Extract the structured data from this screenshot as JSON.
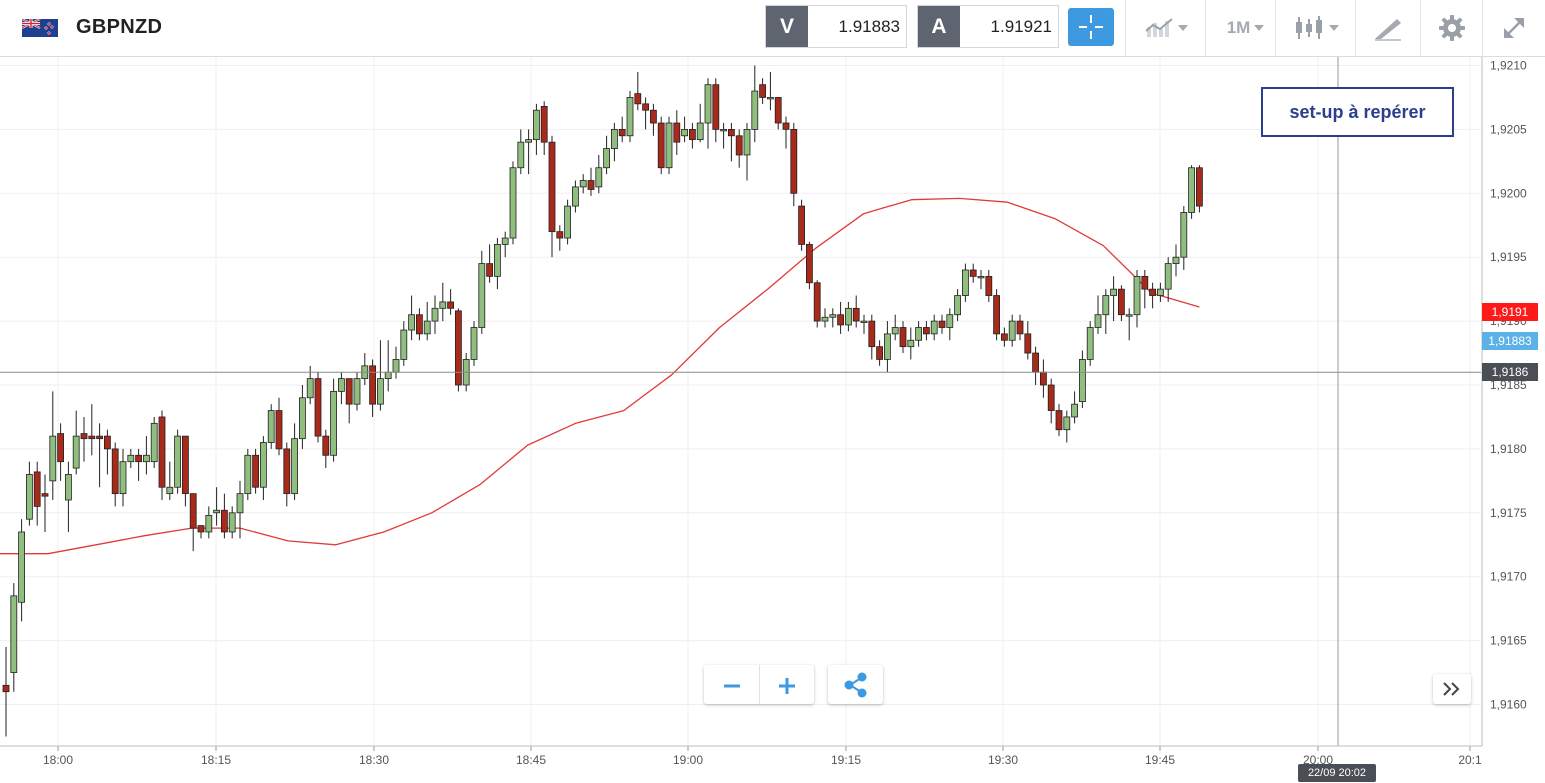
{
  "toolbar": {
    "symbol": "GBPNZD",
    "sell_label": "V",
    "sell_price": "1.91883",
    "buy_label": "A",
    "buy_price": "1.91921",
    "timeframe": "1M"
  },
  "annotation": "set-up à repérer",
  "price_tags": {
    "ma_value": "1,9191",
    "sell_value": "1,91883",
    "crosshair_value": "1,9186"
  },
  "crosshair_time": "22/09 20:02",
  "colors": {
    "bull": "#8fbe7e",
    "bear": "#a82a1a",
    "ma_line": "#e03a3a",
    "accent": "#3d9ae0",
    "annotation_border": "#2d3f8c"
  },
  "icons": {
    "flag": "uk-nz-flag-icon",
    "crosshair": "crosshair-icon",
    "chart_type": "chart-type-icon",
    "candles": "candlestick-icon",
    "draw": "drawing-tool-icon",
    "settings": "gear-icon",
    "fullscreen": "fullscreen-icon",
    "zoom_out": "minus-icon",
    "zoom_in": "plus-icon",
    "share": "share-icon",
    "scroll_forward": "double-chevron-right-icon"
  },
  "chart_data": {
    "type": "candlestick",
    "ylim": [
      1.9157,
      1.9211
    ],
    "y_ticks": [
      "1,9160",
      "1,9165",
      "1,9170",
      "1,9175",
      "1,9180",
      "1,9185",
      "1,9190",
      "1,9195",
      "1,9200",
      "1,9205",
      "1,9210"
    ],
    "x_ticks": [
      "18:00",
      "18:15",
      "18:30",
      "18:45",
      "19:00",
      "19:15",
      "19:30",
      "19:45",
      "20:00",
      "20:1"
    ],
    "interval": "1 minute",
    "grid": true,
    "crosshair_price": 1.9186,
    "moving_average": [
      1.91718,
      1.91718,
      1.91725,
      1.91732,
      1.91738,
      1.91738,
      1.91728,
      1.91725,
      1.91735,
      1.9175,
      1.91772,
      1.91803,
      1.9182,
      1.9183,
      1.91858,
      1.91895,
      1.91925,
      1.91957,
      1.91984,
      1.91995,
      1.91996,
      1.91993,
      1.9198,
      1.91959,
      1.91922,
      1.91911
    ],
    "candles": [
      [
        1.91615,
        1.9161,
        1.91645,
        1.91575
      ],
      [
        1.91625,
        1.91685,
        1.91695,
        1.9161
      ],
      [
        1.9168,
        1.91735,
        1.91745,
        1.91665
      ],
      [
        1.91745,
        1.9178,
        1.9179,
        1.9174
      ],
      [
        1.91782,
        1.91755,
        1.9179,
        1.9174
      ],
      [
        1.91765,
        1.91763,
        1.9178,
        1.91735
      ],
      [
        1.91775,
        1.9181,
        1.91845,
        1.9176
      ],
      [
        1.91812,
        1.9179,
        1.9182,
        1.91775
      ],
      [
        1.9176,
        1.9178,
        1.9179,
        1.91735
      ],
      [
        1.91785,
        1.9181,
        1.9183,
        1.9178
      ],
      [
        1.91812,
        1.91808,
        1.91825,
        1.9179
      ],
      [
        1.9181,
        1.91808,
        1.91835,
        1.91795
      ],
      [
        1.9181,
        1.91808,
        1.9182,
        1.9177
      ],
      [
        1.9181,
        1.918,
        1.91815,
        1.9178
      ],
      [
        1.918,
        1.91765,
        1.91805,
        1.91755
      ],
      [
        1.91765,
        1.9179,
        1.918,
        1.91755
      ],
      [
        1.9179,
        1.91795,
        1.918,
        1.91785
      ],
      [
        1.91795,
        1.9179,
        1.918,
        1.91775
      ],
      [
        1.9179,
        1.91795,
        1.9181,
        1.9178
      ],
      [
        1.9179,
        1.9182,
        1.91825,
        1.91785
      ],
      [
        1.91825,
        1.9177,
        1.9183,
        1.9176
      ],
      [
        1.91765,
        1.9177,
        1.9179,
        1.9176
      ],
      [
        1.9177,
        1.9181,
        1.91815,
        1.91765
      ],
      [
        1.9181,
        1.91765,
        1.9181,
        1.91755
      ],
      [
        1.91765,
        1.91738,
        1.91765,
        1.9172
      ],
      [
        1.9174,
        1.91735,
        1.9174,
        1.9173
      ],
      [
        1.91735,
        1.91748,
        1.91755,
        1.9173
      ],
      [
        1.9175,
        1.91752,
        1.9177,
        1.9174
      ],
      [
        1.91752,
        1.91735,
        1.91765,
        1.9173
      ],
      [
        1.91735,
        1.9175,
        1.91755,
        1.9173
      ],
      [
        1.9175,
        1.91765,
        1.91775,
        1.9173
      ],
      [
        1.91765,
        1.91795,
        1.918,
        1.9176
      ],
      [
        1.91795,
        1.9177,
        1.918,
        1.91765
      ],
      [
        1.9177,
        1.91805,
        1.9181,
        1.9176
      ],
      [
        1.91805,
        1.9183,
        1.91835,
        1.918
      ],
      [
        1.9183,
        1.918,
        1.9184,
        1.91795
      ],
      [
        1.918,
        1.91765,
        1.91805,
        1.91755
      ],
      [
        1.91765,
        1.91808,
        1.9182,
        1.9176
      ],
      [
        1.91808,
        1.9184,
        1.9185,
        1.918
      ],
      [
        1.9184,
        1.91855,
        1.91865,
        1.91835
      ],
      [
        1.91855,
        1.9181,
        1.9186,
        1.91805
      ],
      [
        1.9181,
        1.91795,
        1.91815,
        1.91785
      ],
      [
        1.91795,
        1.91845,
        1.91855,
        1.9179
      ],
      [
        1.91845,
        1.91855,
        1.9186,
        1.91835
      ],
      [
        1.91855,
        1.91835,
        1.91855,
        1.9182
      ],
      [
        1.91835,
        1.91855,
        1.9186,
        1.9183
      ],
      [
        1.91855,
        1.91865,
        1.91875,
        1.9185
      ],
      [
        1.91865,
        1.91835,
        1.9187,
        1.91825
      ],
      [
        1.91835,
        1.91855,
        1.91885,
        1.9183
      ],
      [
        1.91855,
        1.9186,
        1.91885,
        1.91845
      ],
      [
        1.9186,
        1.9187,
        1.9188,
        1.91855
      ],
      [
        1.9187,
        1.91893,
        1.919,
        1.91865
      ],
      [
        1.91893,
        1.91905,
        1.9192,
        1.91885
      ],
      [
        1.91905,
        1.9189,
        1.9191,
        1.91885
      ],
      [
        1.9189,
        1.919,
        1.91915,
        1.91885
      ],
      [
        1.919,
        1.9191,
        1.9192,
        1.9189
      ],
      [
        1.9191,
        1.91915,
        1.9193,
        1.919
      ],
      [
        1.91915,
        1.9191,
        1.91925,
        1.91905
      ],
      [
        1.91908,
        1.9185,
        1.9191,
        1.91845
      ],
      [
        1.9185,
        1.9187,
        1.91875,
        1.91845
      ],
      [
        1.9187,
        1.91895,
        1.919,
        1.91865
      ],
      [
        1.91895,
        1.91945,
        1.91955,
        1.9189
      ],
      [
        1.91945,
        1.91935,
        1.9196,
        1.9193
      ],
      [
        1.91935,
        1.9196,
        1.91965,
        1.91925
      ],
      [
        1.9196,
        1.91965,
        1.9197,
        1.9195
      ],
      [
        1.91965,
        1.9202,
        1.92025,
        1.9196
      ],
      [
        1.9202,
        1.9204,
        1.9205,
        1.92015
      ],
      [
        1.9204,
        1.92042,
        1.9205,
        1.92015
      ],
      [
        1.92042,
        1.92065,
        1.9207,
        1.9203
      ],
      [
        1.92068,
        1.9204,
        1.92072,
        1.9203
      ],
      [
        1.9204,
        1.9197,
        1.92045,
        1.9195
      ],
      [
        1.9197,
        1.91965,
        1.91975,
        1.91955
      ],
      [
        1.91965,
        1.9199,
        1.91995,
        1.9196
      ],
      [
        1.9199,
        1.92005,
        1.9201,
        1.91985
      ],
      [
        1.92005,
        1.9201,
        1.92015,
        1.92
      ],
      [
        1.9201,
        1.92003,
        1.9202,
        1.91998
      ],
      [
        1.92005,
        1.9202,
        1.9203,
        1.92
      ],
      [
        1.9202,
        1.92035,
        1.92045,
        1.92015
      ],
      [
        1.92035,
        1.9205,
        1.92055,
        1.92025
      ],
      [
        1.9205,
        1.92045,
        1.9206,
        1.9204
      ],
      [
        1.92045,
        1.92075,
        1.9208,
        1.9204
      ],
      [
        1.92078,
        1.9207,
        1.92095,
        1.92065
      ],
      [
        1.9207,
        1.92065,
        1.92075,
        1.9205
      ],
      [
        1.92065,
        1.92055,
        1.9207,
        1.92045
      ],
      [
        1.92055,
        1.9202,
        1.9206,
        1.92015
      ],
      [
        1.9202,
        1.92055,
        1.9206,
        1.92015
      ],
      [
        1.92055,
        1.9204,
        1.92065,
        1.9203
      ],
      [
        1.92045,
        1.9205,
        1.9206,
        1.9204
      ],
      [
        1.9205,
        1.92042,
        1.92055,
        1.92035
      ],
      [
        1.92042,
        1.92055,
        1.9207,
        1.9204
      ],
      [
        1.92055,
        1.92085,
        1.9209,
        1.92035
      ],
      [
        1.92085,
        1.9205,
        1.9209,
        1.9204
      ],
      [
        1.9205,
        1.9205,
        1.92055,
        1.92035
      ],
      [
        1.9205,
        1.92045,
        1.92055,
        1.92025
      ],
      [
        1.92045,
        1.9203,
        1.9205,
        1.9202
      ],
      [
        1.9203,
        1.9205,
        1.92055,
        1.9201
      ],
      [
        1.9205,
        1.9208,
        1.921,
        1.9204
      ],
      [
        1.92085,
        1.92075,
        1.9209,
        1.9207
      ],
      [
        1.92075,
        1.92075,
        1.92095,
        1.92065
      ],
      [
        1.92075,
        1.92055,
        1.92075,
        1.9205
      ],
      [
        1.92055,
        1.9205,
        1.9206,
        1.92035
      ],
      [
        1.9205,
        1.92,
        1.92055,
        1.9199
      ],
      [
        1.9199,
        1.9196,
        1.91995,
        1.91955
      ],
      [
        1.9196,
        1.9193,
        1.91962,
        1.91925
      ],
      [
        1.9193,
        1.919,
        1.91932,
        1.91895
      ],
      [
        1.919,
        1.91903,
        1.9191,
        1.91895
      ],
      [
        1.91903,
        1.91905,
        1.9191,
        1.91895
      ],
      [
        1.91905,
        1.91897,
        1.91915,
        1.9189
      ],
      [
        1.91897,
        1.9191,
        1.91915,
        1.91892
      ],
      [
        1.9191,
        1.919,
        1.9192,
        1.91895
      ],
      [
        1.919,
        1.919,
        1.91905,
        1.9189
      ],
      [
        1.919,
        1.9188,
        1.91905,
        1.9187
      ],
      [
        1.9188,
        1.9187,
        1.91885,
        1.91865
      ],
      [
        1.9187,
        1.9189,
        1.919,
        1.9186
      ],
      [
        1.9189,
        1.91895,
        1.91905,
        1.91885
      ],
      [
        1.91895,
        1.9188,
        1.919,
        1.91875
      ],
      [
        1.9188,
        1.91885,
        1.91895,
        1.9187
      ],
      [
        1.91885,
        1.91895,
        1.919,
        1.9188
      ],
      [
        1.91895,
        1.9189,
        1.919,
        1.91885
      ],
      [
        1.9189,
        1.919,
        1.91905,
        1.91885
      ],
      [
        1.919,
        1.91895,
        1.91905,
        1.9189
      ],
      [
        1.91895,
        1.91905,
        1.9191,
        1.91885
      ],
      [
        1.91905,
        1.9192,
        1.91925,
        1.919
      ],
      [
        1.9192,
        1.9194,
        1.91945,
        1.91915
      ],
      [
        1.9194,
        1.91935,
        1.91945,
        1.9193
      ],
      [
        1.91935,
        1.91935,
        1.9194,
        1.91925
      ],
      [
        1.91935,
        1.9192,
        1.9194,
        1.91915
      ],
      [
        1.9192,
        1.9189,
        1.91925,
        1.91885
      ],
      [
        1.9189,
        1.91885,
        1.91895,
        1.9188
      ],
      [
        1.91885,
        1.919,
        1.91905,
        1.9188
      ],
      [
        1.919,
        1.9189,
        1.91905,
        1.91885
      ],
      [
        1.9189,
        1.91875,
        1.919,
        1.9187
      ],
      [
        1.91875,
        1.9186,
        1.9188,
        1.9185
      ],
      [
        1.9186,
        1.9185,
        1.9187,
        1.9184
      ],
      [
        1.9185,
        1.9183,
        1.91855,
        1.9182
      ],
      [
        1.9183,
        1.91815,
        1.91835,
        1.9181
      ],
      [
        1.91815,
        1.91825,
        1.9183,
        1.91805
      ],
      [
        1.91825,
        1.91835,
        1.91845,
        1.9182
      ],
      [
        1.91837,
        1.9187,
        1.91877,
        1.91832
      ],
      [
        1.9187,
        1.91895,
        1.919,
        1.91865
      ],
      [
        1.91895,
        1.91905,
        1.9192,
        1.9189
      ],
      [
        1.91905,
        1.9192,
        1.91925,
        1.9189
      ],
      [
        1.9192,
        1.91925,
        1.91935,
        1.919
      ],
      [
        1.91925,
        1.91905,
        1.91928,
        1.919
      ],
      [
        1.91905,
        1.91905,
        1.9191,
        1.91885
      ],
      [
        1.91905,
        1.91935,
        1.9194,
        1.91895
      ],
      [
        1.91935,
        1.91925,
        1.9194,
        1.9191
      ],
      [
        1.91925,
        1.9192,
        1.9193,
        1.9191
      ],
      [
        1.9192,
        1.91925,
        1.9193,
        1.91915
      ],
      [
        1.91925,
        1.91945,
        1.9195,
        1.91915
      ],
      [
        1.91945,
        1.9195,
        1.9196,
        1.91935
      ],
      [
        1.9195,
        1.91985,
        1.9199,
        1.9194
      ],
      [
        1.91985,
        1.9202,
        1.92022,
        1.9198
      ],
      [
        1.9202,
        1.9199,
        1.92022,
        1.91985
      ]
    ]
  }
}
